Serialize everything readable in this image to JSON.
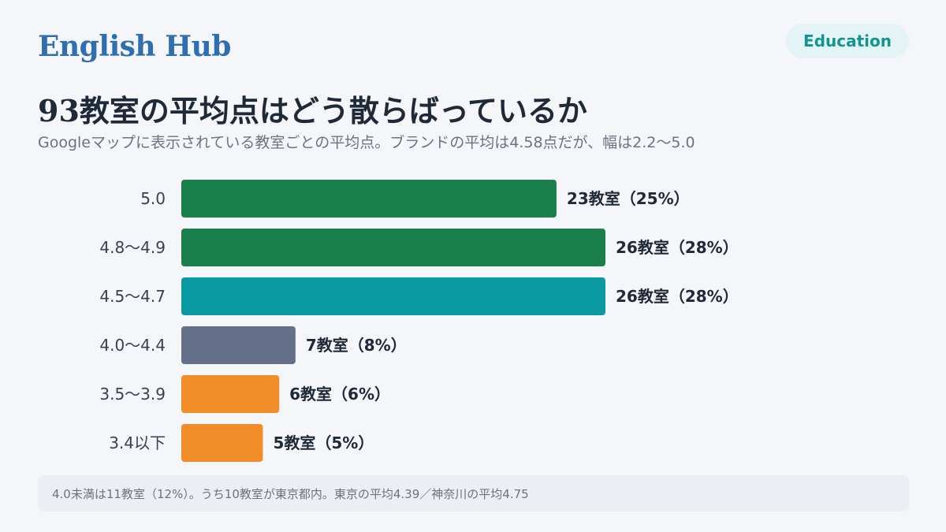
{
  "header": {
    "brand": "English Hub",
    "badge": "Education"
  },
  "title": "93教室の平均点はどう散らばっているか",
  "subtitle": "Googleマップに表示されている教室ごとの平均点。ブランドの平均は4.58点だが、幅は2.2〜5.0",
  "footnote": "4.0未満は11教室（12%）。うち10教室が東京都内。東京の平均4.39／神奈川の平均4.75",
  "colors": {
    "dark_green": "#1a7f4b",
    "teal": "#0a9aa2",
    "slate": "#64708a",
    "orange": "#f28c28"
  },
  "chart_data": {
    "type": "bar",
    "orientation": "horizontal",
    "categories": [
      "5.0",
      "4.8〜4.9",
      "4.5〜4.7",
      "4.0〜4.4",
      "3.5〜3.9",
      "3.4以下"
    ],
    "values": [
      23,
      26,
      26,
      7,
      6,
      5
    ],
    "data_labels": [
      "23教室（25%）",
      "26教室（28%）",
      "26教室（28%）",
      "7教室（8%）",
      "6教室（6%）",
      "5教室（5%）"
    ],
    "bar_colors": [
      "#1a7f4b",
      "#1a7f4b",
      "#0a9aa2",
      "#64708a",
      "#f28c28",
      "#f28c28"
    ],
    "xlim": [
      0,
      26
    ],
    "grid": false,
    "legend": "none"
  }
}
